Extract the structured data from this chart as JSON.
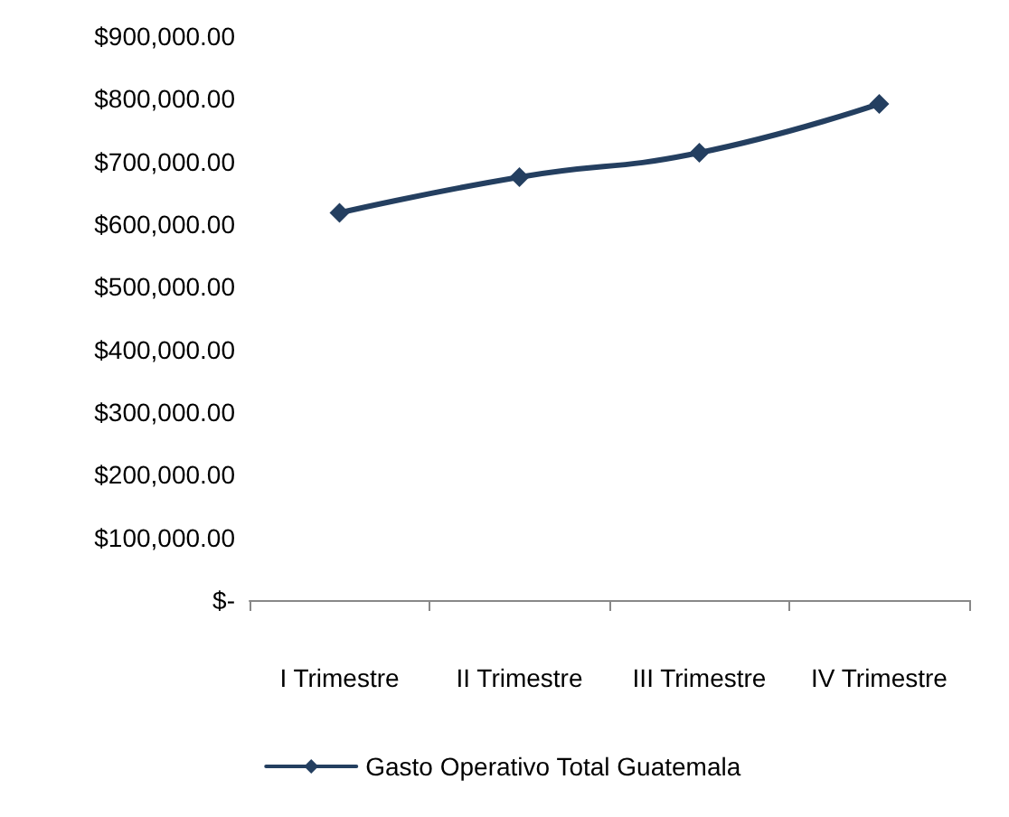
{
  "chart_data": {
    "type": "line",
    "categories": [
      "I Trimestre",
      "II Trimestre",
      "III Trimestre",
      "IV Trimestre"
    ],
    "series": [
      {
        "name": "Gasto Operativo Total Guatemala",
        "color": "#243f60",
        "values": [
          618000,
          675000,
          714000,
          792000
        ]
      }
    ],
    "ylim": [
      0,
      900000
    ],
    "yticks": [
      {
        "value": 0,
        "label": "$-"
      },
      {
        "value": 100000,
        "label": "$100,000.00"
      },
      {
        "value": 200000,
        "label": "$200,000.00"
      },
      {
        "value": 300000,
        "label": "$300,000.00"
      },
      {
        "value": 400000,
        "label": "$400,000.00"
      },
      {
        "value": 500000,
        "label": "$500,000.00"
      },
      {
        "value": 600000,
        "label": "$600,000.00"
      },
      {
        "value": 700000,
        "label": "$700,000.00"
      },
      {
        "value": 800000,
        "label": "$800,000.00"
      },
      {
        "value": 900000,
        "label": "$900,000.00"
      }
    ],
    "grid": false,
    "legend": "bottom",
    "marker": "diamond",
    "line_style": "solid"
  }
}
